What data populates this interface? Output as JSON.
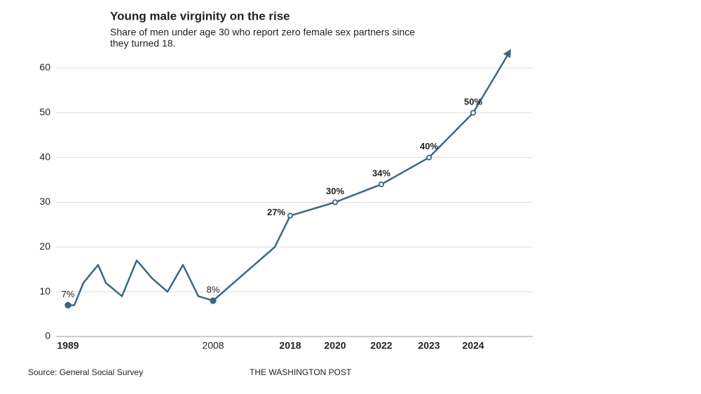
{
  "chart_data": {
    "type": "line",
    "title": "Young male virginity on the rise",
    "subtitle": [
      "Share of men under age 30 who report zero female sex partners since",
      "they turned 18."
    ],
    "categories": [
      "1989",
      null,
      null,
      null,
      null,
      null,
      null,
      null,
      null,
      null,
      null,
      "2008",
      null,
      "2018",
      "2020",
      "2022",
      "2023",
      "2024"
    ],
    "series": [
      {
        "name": null,
        "color": "#3a6880",
        "values": [
          7,
          7,
          12,
          16,
          12,
          9,
          17,
          13,
          10,
          16,
          9,
          8,
          20,
          27,
          30,
          34,
          40,
          50
        ],
        "value_labels": [
          "7%",
          null,
          null,
          null,
          null,
          null,
          null,
          null,
          null,
          null,
          null,
          "8%",
          null,
          "27%",
          "30%",
          "34%",
          "40%",
          "50%"
        ]
      }
    ],
    "ylim": [
      0,
      60
    ],
    "yticks": [
      0,
      10,
      20,
      30,
      40,
      50,
      60
    ],
    "grid": true,
    "source": "Source: General Social Survey",
    "credit": "THE WASHINGTON POST"
  }
}
